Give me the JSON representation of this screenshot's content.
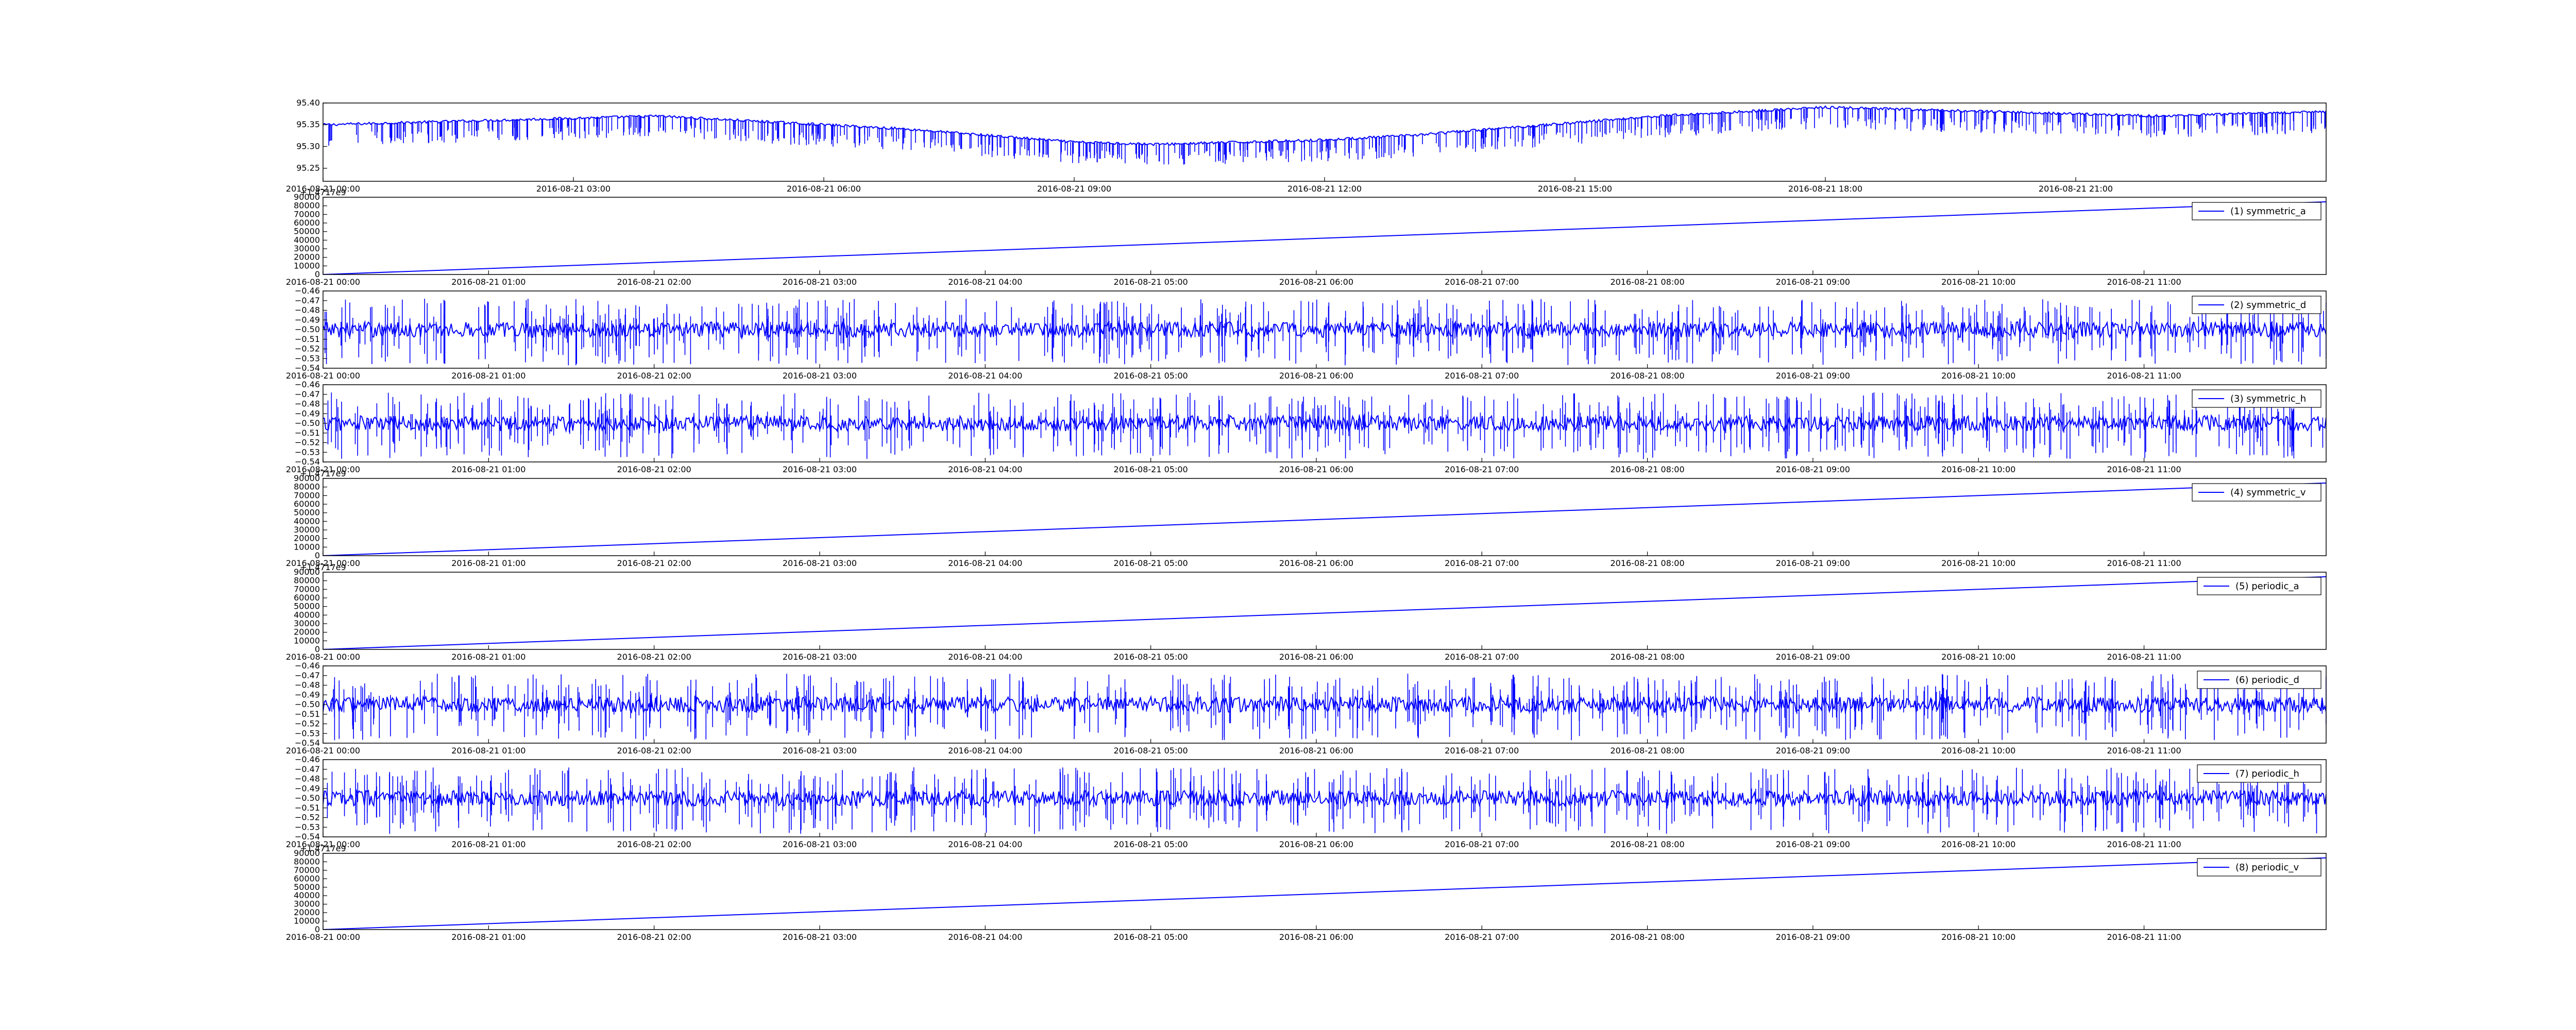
{
  "chart_data": [
    {
      "id": "top",
      "type": "line",
      "color": "#0000ff",
      "legend": "",
      "offset_text": "",
      "ylim": [
        95.22,
        95.4
      ],
      "yticks": [
        "95.25",
        "95.30",
        "95.35",
        "95.40"
      ],
      "xticks": [
        "2016-08-21 00:00",
        "2016-08-21 03:00",
        "2016-08-21 06:00",
        "2016-08-21 09:00",
        "2016-08-21 12:00",
        "2016-08-21 15:00",
        "2016-08-21 18:00",
        "2016-08-21 21:00"
      ],
      "x_tick_steps": 8,
      "series": [
        {
          "x": [
            0,
            1,
            2,
            3,
            4,
            5,
            6,
            7,
            8,
            9,
            10,
            11,
            12,
            13,
            14,
            15,
            16,
            17,
            18,
            19,
            20,
            21,
            22,
            23,
            24
          ],
          "y": [
            95.35,
            95.355,
            95.36,
            95.365,
            95.37,
            95.36,
            95.35,
            95.34,
            95.325,
            95.31,
            95.305,
            95.31,
            95.315,
            95.325,
            95.34,
            95.355,
            95.37,
            95.38,
            95.39,
            95.385,
            95.38,
            95.375,
            95.37,
            95.375,
            95.38
          ],
          "dip_depth": 0.05
        }
      ]
    },
    {
      "id": "p1",
      "type": "line",
      "color": "#0000ff",
      "legend": "(1) symmetric_a",
      "offset_text": "+1.4717e9",
      "ylim": [
        0,
        90000
      ],
      "yticks": [
        "0",
        "10000",
        "20000",
        "30000",
        "40000",
        "50000",
        "60000",
        "70000",
        "80000",
        "90000"
      ],
      "xticks": [
        "2016-08-21 00:00",
        "2016-08-21 01:00",
        "2016-08-21 02:00",
        "2016-08-21 03:00",
        "2016-08-21 04:00",
        "2016-08-21 05:00",
        "2016-08-21 06:00",
        "2016-08-21 07:00",
        "2016-08-21 08:00",
        "2016-08-21 09:00",
        "2016-08-21 10:00",
        "2016-08-21 11:00"
      ],
      "x_tick_steps": 12,
      "series": [
        {
          "x": [
            0,
            12
          ],
          "y": [
            0,
            84000
          ]
        }
      ]
    },
    {
      "id": "p2",
      "type": "line",
      "color": "#0000ff",
      "legend": "(2) symmetric_d",
      "offset_text": "",
      "ylim": [
        -0.54,
        -0.46
      ],
      "yticks": [
        "−0.54",
        "−0.53",
        "−0.52",
        "−0.51",
        "−0.50",
        "−0.49",
        "−0.48",
        "−0.47",
        "−0.46"
      ],
      "xticks": [
        "2016-08-21 00:00",
        "2016-08-21 01:00",
        "2016-08-21 02:00",
        "2016-08-21 03:00",
        "2016-08-21 04:00",
        "2016-08-21 05:00",
        "2016-08-21 06:00",
        "2016-08-21 07:00",
        "2016-08-21 08:00",
        "2016-08-21 09:00",
        "2016-08-21 10:00",
        "2016-08-21 11:00"
      ],
      "x_tick_steps": 12,
      "series": [
        {
          "baseline": -0.5,
          "band": [
            -0.508,
            -0.492
          ],
          "spike_range": [
            -0.537,
            -0.468
          ]
        }
      ]
    },
    {
      "id": "p3",
      "type": "line",
      "color": "#0000ff",
      "legend": "(3) symmetric_h",
      "offset_text": "",
      "ylim": [
        -0.54,
        -0.46
      ],
      "yticks": [
        "−0.54",
        "−0.53",
        "−0.52",
        "−0.51",
        "−0.50",
        "−0.49",
        "−0.48",
        "−0.47",
        "−0.46"
      ],
      "xticks": [
        "2016-08-21 00:00",
        "2016-08-21 01:00",
        "2016-08-21 02:00",
        "2016-08-21 03:00",
        "2016-08-21 04:00",
        "2016-08-21 05:00",
        "2016-08-21 06:00",
        "2016-08-21 07:00",
        "2016-08-21 08:00",
        "2016-08-21 09:00",
        "2016-08-21 10:00",
        "2016-08-21 11:00"
      ],
      "x_tick_steps": 12,
      "series": [
        {
          "baseline": -0.5,
          "band": [
            -0.508,
            -0.492
          ],
          "spike_range": [
            -0.537,
            -0.468
          ]
        }
      ]
    },
    {
      "id": "p4",
      "type": "line",
      "color": "#0000ff",
      "legend": "(4) symmetric_v",
      "offset_text": "+1.4717e9",
      "ylim": [
        0,
        90000
      ],
      "yticks": [
        "0",
        "10000",
        "20000",
        "30000",
        "40000",
        "50000",
        "60000",
        "70000",
        "80000",
        "90000"
      ],
      "xticks": [
        "2016-08-21 00:00",
        "2016-08-21 01:00",
        "2016-08-21 02:00",
        "2016-08-21 03:00",
        "2016-08-21 04:00",
        "2016-08-21 05:00",
        "2016-08-21 06:00",
        "2016-08-21 07:00",
        "2016-08-21 08:00",
        "2016-08-21 09:00",
        "2016-08-21 10:00",
        "2016-08-21 11:00"
      ],
      "x_tick_steps": 12,
      "series": [
        {
          "x": [
            0,
            12
          ],
          "y": [
            0,
            84000
          ]
        }
      ]
    },
    {
      "id": "p5",
      "type": "line",
      "color": "#0000ff",
      "legend": "(5) periodic_a",
      "offset_text": "+1.4717e9",
      "ylim": [
        0,
        90000
      ],
      "yticks": [
        "0",
        "10000",
        "20000",
        "30000",
        "40000",
        "50000",
        "60000",
        "70000",
        "80000",
        "90000"
      ],
      "xticks": [
        "2016-08-21 00:00",
        "2016-08-21 01:00",
        "2016-08-21 02:00",
        "2016-08-21 03:00",
        "2016-08-21 04:00",
        "2016-08-21 05:00",
        "2016-08-21 06:00",
        "2016-08-21 07:00",
        "2016-08-21 08:00",
        "2016-08-21 09:00",
        "2016-08-21 10:00",
        "2016-08-21 11:00"
      ],
      "x_tick_steps": 12,
      "series": [
        {
          "x": [
            0,
            12
          ],
          "y": [
            0,
            84000
          ]
        }
      ]
    },
    {
      "id": "p6",
      "type": "line",
      "color": "#0000ff",
      "legend": "(6) periodic_d",
      "offset_text": "",
      "ylim": [
        -0.54,
        -0.46
      ],
      "yticks": [
        "−0.54",
        "−0.53",
        "−0.52",
        "−0.51",
        "−0.50",
        "−0.49",
        "−0.48",
        "−0.47",
        "−0.46"
      ],
      "xticks": [
        "2016-08-21 00:00",
        "2016-08-21 01:00",
        "2016-08-21 02:00",
        "2016-08-21 03:00",
        "2016-08-21 04:00",
        "2016-08-21 05:00",
        "2016-08-21 06:00",
        "2016-08-21 07:00",
        "2016-08-21 08:00",
        "2016-08-21 09:00",
        "2016-08-21 10:00",
        "2016-08-21 11:00"
      ],
      "x_tick_steps": 12,
      "series": [
        {
          "baseline": -0.5,
          "band": [
            -0.508,
            -0.492
          ],
          "spike_range": [
            -0.537,
            -0.468
          ]
        }
      ]
    },
    {
      "id": "p7",
      "type": "line",
      "color": "#0000ff",
      "legend": "(7) periodic_h",
      "offset_text": "",
      "ylim": [
        -0.54,
        -0.46
      ],
      "yticks": [
        "−0.54",
        "−0.53",
        "−0.52",
        "−0.51",
        "−0.50",
        "−0.49",
        "−0.48",
        "−0.47",
        "−0.46"
      ],
      "xticks": [
        "2016-08-21 00:00",
        "2016-08-21 01:00",
        "2016-08-21 02:00",
        "2016-08-21 03:00",
        "2016-08-21 04:00",
        "2016-08-21 05:00",
        "2016-08-21 06:00",
        "2016-08-21 07:00",
        "2016-08-21 08:00",
        "2016-08-21 09:00",
        "2016-08-21 10:00",
        "2016-08-21 11:00"
      ],
      "x_tick_steps": 12,
      "series": [
        {
          "baseline": -0.5,
          "band": [
            -0.508,
            -0.492
          ],
          "spike_range": [
            -0.537,
            -0.468
          ]
        }
      ]
    },
    {
      "id": "p8",
      "type": "line",
      "color": "#0000ff",
      "legend": "(8) periodic_v",
      "offset_text": "+1.4717e9",
      "ylim": [
        0,
        90000
      ],
      "yticks": [
        "0",
        "10000",
        "20000",
        "30000",
        "40000",
        "50000",
        "60000",
        "70000",
        "80000",
        "90000"
      ],
      "xticks": [
        "2016-08-21 00:00",
        "2016-08-21 01:00",
        "2016-08-21 02:00",
        "2016-08-21 03:00",
        "2016-08-21 04:00",
        "2016-08-21 05:00",
        "2016-08-21 06:00",
        "2016-08-21 07:00",
        "2016-08-21 08:00",
        "2016-08-21 09:00",
        "2016-08-21 10:00",
        "2016-08-21 11:00"
      ],
      "x_tick_steps": 12,
      "series": [
        {
          "x": [
            0,
            12
          ],
          "y": [
            0,
            84000
          ]
        }
      ]
    }
  ]
}
